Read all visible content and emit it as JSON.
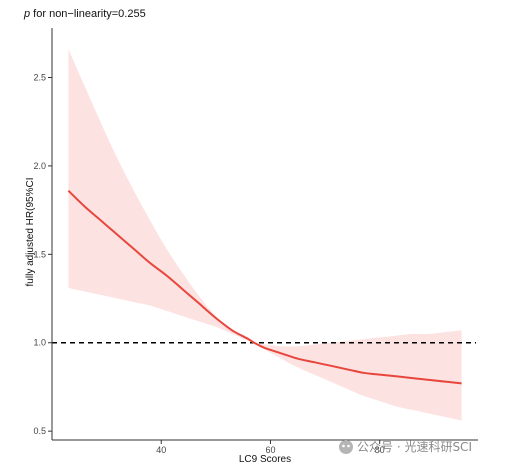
{
  "chart_data": {
    "type": "line",
    "title_p": "p",
    "title_rest": " for non−linearity=0.255",
    "xlabel": "LC9 Scores",
    "ylabel": "fully adjusted HR(95%CI",
    "xlim": [
      20,
      98
    ],
    "ylim": [
      0.45,
      2.78
    ],
    "xticks": [
      40,
      60,
      80
    ],
    "xtick_labels": [
      "40",
      "60",
      "80"
    ],
    "yticks": [
      0.5,
      1.0,
      1.5,
      2.0,
      2.5
    ],
    "ytick_labels": [
      "0.5",
      "1.0",
      "1.5",
      "2.0",
      "2.5"
    ],
    "reference_line": 1.0,
    "grid": false,
    "series": [
      {
        "x": [
          23,
          26,
          29,
          32,
          35,
          38,
          41,
          44,
          47,
          50,
          53,
          56,
          57,
          59,
          62,
          65,
          68,
          71,
          74,
          77,
          80,
          83,
          86,
          89,
          92,
          95
        ],
        "y": [
          1.86,
          1.77,
          1.69,
          1.61,
          1.53,
          1.45,
          1.38,
          1.3,
          1.22,
          1.14,
          1.07,
          1.02,
          1.0,
          0.97,
          0.94,
          0.91,
          0.89,
          0.87,
          0.85,
          0.83,
          0.82,
          0.81,
          0.8,
          0.79,
          0.78,
          0.77
        ],
        "lower": [
          1.31,
          1.29,
          1.27,
          1.25,
          1.23,
          1.21,
          1.18,
          1.15,
          1.12,
          1.09,
          1.05,
          1.01,
          1.0,
          0.96,
          0.91,
          0.86,
          0.82,
          0.78,
          0.74,
          0.7,
          0.67,
          0.64,
          0.62,
          0.6,
          0.58,
          0.56
        ],
        "upper": [
          2.66,
          2.45,
          2.24,
          2.04,
          1.86,
          1.69,
          1.53,
          1.39,
          1.26,
          1.15,
          1.07,
          1.02,
          1.0,
          0.99,
          0.98,
          0.98,
          0.99,
          1.0,
          1.01,
          1.02,
          1.03,
          1.04,
          1.05,
          1.05,
          1.06,
          1.07
        ]
      }
    ],
    "colors": {
      "line": "#e8463c",
      "band": "#fde2e2",
      "axis": "#333333",
      "reference": "#000000"
    }
  },
  "watermark": "公众号 · 光速科研SCI"
}
